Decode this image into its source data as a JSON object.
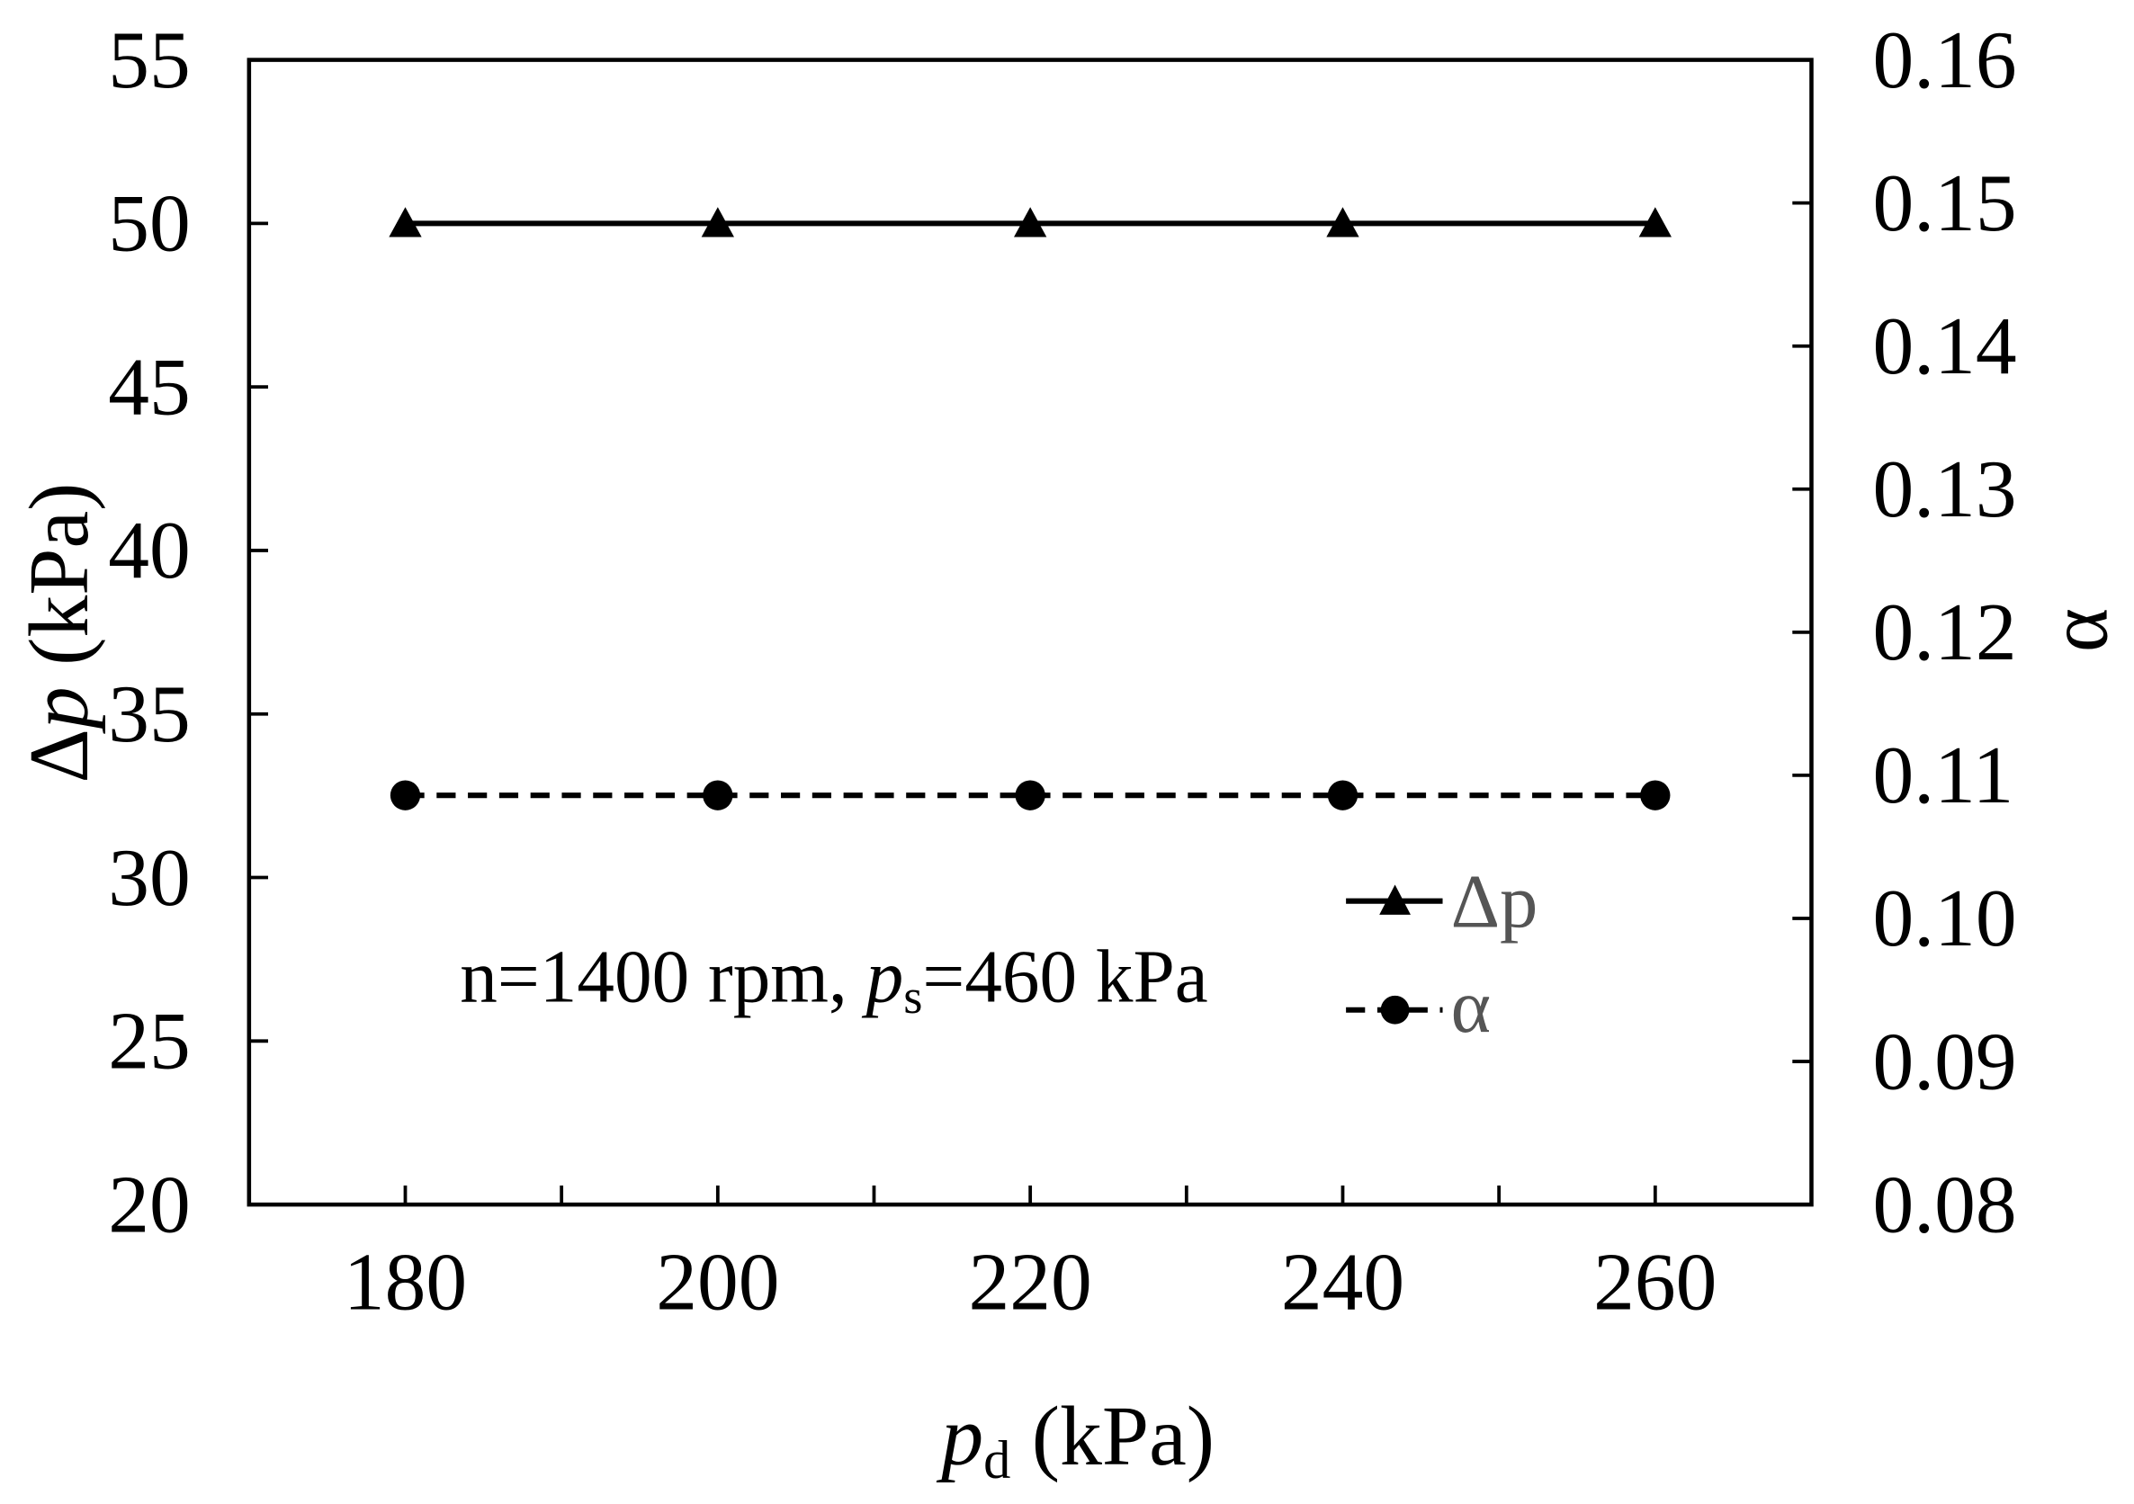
{
  "chart_data": {
    "type": "line",
    "x": [
      180,
      200,
      220,
      240,
      260
    ],
    "xlim": [
      170,
      270
    ],
    "x_ticks": [
      180,
      200,
      220,
      240,
      260
    ],
    "xlabel": {
      "symbol": "p",
      "subscript": "d",
      "unit": " (kPa)"
    },
    "y_left": {
      "label": {
        "prefix": "Δ",
        "symbol": "p",
        "unit": " (kPa)"
      },
      "ylim": [
        20,
        55
      ],
      "ticks": [
        20,
        25,
        30,
        35,
        40,
        45,
        50,
        55
      ],
      "tick_labels": [
        "20",
        "25",
        "30",
        "35",
        "40",
        "45",
        "50",
        "55"
      ]
    },
    "y_right": {
      "label": "α",
      "ylim": [
        0.08,
        0.16
      ],
      "ticks": [
        0.08,
        0.09,
        0.1,
        0.11,
        0.12,
        0.13,
        0.14,
        0.15,
        0.16
      ],
      "tick_labels": [
        "0.08",
        "0.09",
        "0.10",
        "0.11",
        "0.12",
        "0.13",
        "0.14",
        "0.15",
        "0.16"
      ]
    },
    "series": [
      {
        "name": "Δp",
        "axis": "left",
        "values": [
          50,
          50,
          50,
          50,
          50
        ],
        "marker": "triangle",
        "line_style": "solid",
        "color": "#000000"
      },
      {
        "name": "α",
        "axis": "right",
        "values": [
          0.1086,
          0.1086,
          0.1086,
          0.1086,
          0.1086
        ],
        "marker": "circle",
        "line_style": "dashed",
        "color": "#000000"
      }
    ],
    "annotation": {
      "prefix": "n=1400 rpm, ",
      "symbol": "p",
      "subscript": "s",
      "suffix": "=460 kPa"
    },
    "legend_placement": "lower-right",
    "grid": false
  }
}
